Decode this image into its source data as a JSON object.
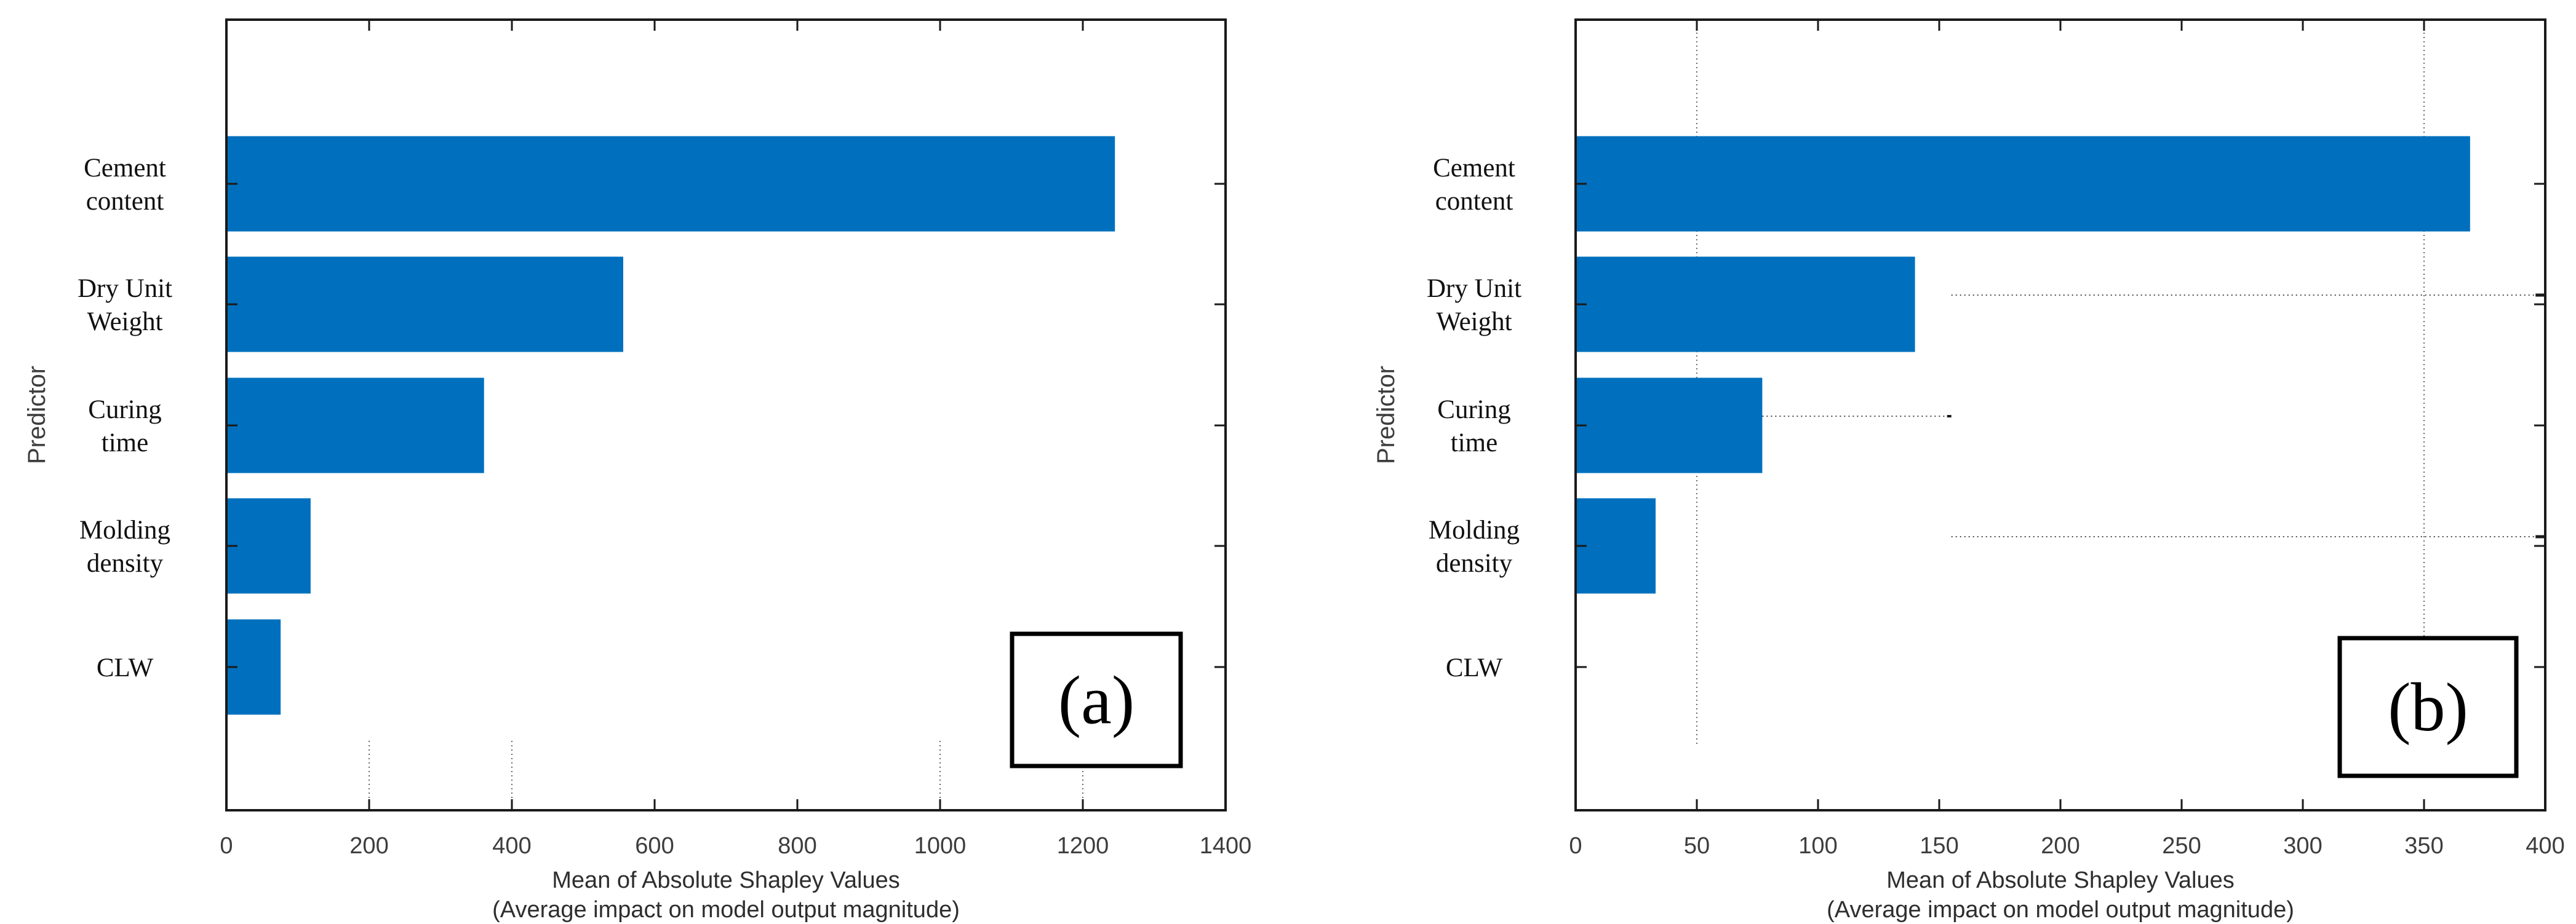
{
  "figure": {
    "description_colors": {
      "bar_blue": "#0070BE",
      "axis_dark": "#1a1a1a",
      "grid_gray": "#6a6a6a",
      "whisker_gray": "#4a4a4a",
      "text_gray": "#3d3d3d",
      "background": "#ffffff"
    }
  },
  "chart_data": [
    {
      "type": "bar",
      "orientation": "horizontal",
      "panel_label": "(a)",
      "ylabel": "Predictor",
      "xlabel_line1": "Mean of Absolute Shapley Values",
      "xlabel_line2": "(Average impact on model output magnitude)",
      "categories": [
        "Cement content",
        "Dry Unit Weight",
        "Curing time",
        "Molding density",
        "CLW"
      ],
      "category_lines": [
        [
          "Cement",
          "content"
        ],
        [
          "Dry Unit",
          "Weight"
        ],
        [
          "Curing",
          "time"
        ],
        [
          "Molding",
          "density"
        ],
        [
          "CLW"
        ]
      ],
      "values": [
        1245,
        556,
        361,
        118,
        76
      ],
      "xlim": [
        0,
        1400
      ],
      "xticks": [
        0,
        200,
        400,
        600,
        800,
        1000,
        1200,
        1400
      ],
      "grid_stub_ticks": [
        200,
        400,
        1000,
        1200
      ],
      "gridlines_full": [],
      "whiskers": [],
      "bar_color": "#0070BE",
      "grid_on": "partial-dotted-stubs-near-axis",
      "legend": "none"
    },
    {
      "type": "bar",
      "orientation": "horizontal",
      "panel_label": "(b)",
      "ylabel": "Predictor",
      "xlabel_line1": "Mean of Absolute Shapley Values",
      "xlabel_line2": "(Average impact on model output magnitude)",
      "categories": [
        "Cement content",
        "Dry Unit Weight",
        "Curing time",
        "Molding density",
        "CLW"
      ],
      "category_lines": [
        [
          "Cement",
          "content"
        ],
        [
          "Dry Unit",
          "Weight"
        ],
        [
          "Curing",
          "time"
        ],
        [
          "Molding",
          "density"
        ],
        [
          "CLW"
        ]
      ],
      "values": [
        369,
        140,
        77,
        33,
        0.5
      ],
      "xlim": [
        0,
        400
      ],
      "xticks": [
        0,
        50,
        100,
        150,
        200,
        250,
        300,
        350,
        400
      ],
      "grid_stub_ticks": [],
      "gridlines_full": [
        50,
        350
      ],
      "whiskers": [
        {
          "category": "Dry Unit Weight",
          "row": 1,
          "x_start": 155,
          "x_end": 396,
          "cap_end": 400
        },
        {
          "category": "Curing time",
          "row": 2,
          "x_start": 77,
          "x_end": 155,
          "cap_end": null
        },
        {
          "category": "Molding density",
          "row": 3,
          "x_start": 155,
          "x_end": 396,
          "cap_end": 400
        }
      ],
      "bar_color": "#0070BE",
      "grid_on": "dotted-vertical-at-50-and-350",
      "legend": "none"
    }
  ]
}
